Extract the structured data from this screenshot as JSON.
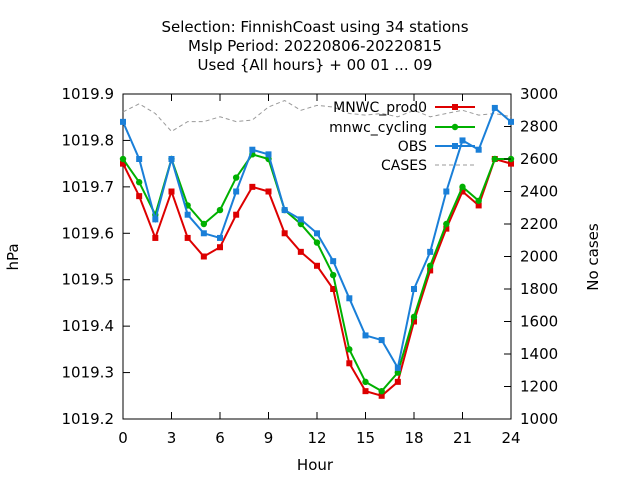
{
  "chart_data": {
    "type": "line",
    "title": [
      "Selection: FinnishCoast using    34 stations",
      "Mslp   Period: 20220806-20220815",
      "Used {All hours} + 00 01 ... 09"
    ],
    "xlabel": "Hour",
    "ylabel": "hPa",
    "y2label": "No cases",
    "xlim": [
      0,
      24
    ],
    "ylim": [
      1019.2,
      1019.9
    ],
    "y2lim": [
      1000,
      3000
    ],
    "xticks": [
      0,
      3,
      6,
      9,
      12,
      15,
      18,
      21,
      24
    ],
    "yticks": [
      1019.2,
      1019.3,
      1019.4,
      1019.5,
      1019.6,
      1019.7,
      1019.8,
      1019.9
    ],
    "y2ticks": [
      1000,
      1200,
      1400,
      1600,
      1800,
      2000,
      2200,
      2400,
      2600,
      2800,
      3000
    ],
    "grid": false,
    "legend_position": "top-right",
    "x": [
      0,
      1,
      2,
      3,
      4,
      5,
      6,
      7,
      8,
      9,
      10,
      11,
      12,
      13,
      14,
      15,
      16,
      17,
      18,
      19,
      20,
      21,
      22,
      23,
      24
    ],
    "series": [
      {
        "name": "MNWC_prod0",
        "axis": "y",
        "color": "#dd0000",
        "marker": "square",
        "values": [
          1019.75,
          1019.68,
          1019.59,
          1019.69,
          1019.59,
          1019.55,
          1019.57,
          1019.64,
          1019.7,
          1019.69,
          1019.6,
          1019.56,
          1019.53,
          1019.48,
          1019.32,
          1019.26,
          1019.25,
          1019.28,
          1019.41,
          1019.52,
          1019.61,
          1019.69,
          1019.66,
          1019.76,
          1019.75
        ]
      },
      {
        "name": "mnwc_cycling",
        "axis": "y",
        "color": "#00b000",
        "marker": "circle",
        "values": [
          1019.76,
          1019.71,
          1019.64,
          1019.76,
          1019.66,
          1019.62,
          1019.65,
          1019.72,
          1019.77,
          1019.76,
          1019.65,
          1019.62,
          1019.58,
          1019.51,
          1019.35,
          1019.28,
          1019.26,
          1019.3,
          1019.42,
          1019.53,
          1019.62,
          1019.7,
          1019.67,
          1019.76,
          1019.76
        ]
      },
      {
        "name": "OBS",
        "axis": "y",
        "color": "#1a7fd8",
        "marker": "square",
        "values": [
          1019.84,
          1019.76,
          1019.63,
          1019.76,
          1019.64,
          1019.6,
          1019.59,
          1019.69,
          1019.78,
          1019.77,
          1019.65,
          1019.63,
          1019.6,
          1019.54,
          1019.46,
          1019.38,
          1019.37,
          1019.31,
          1019.48,
          1019.56,
          1019.69,
          1019.8,
          1019.78,
          1019.87,
          1019.84
        ]
      },
      {
        "name": "CASES",
        "axis": "y2",
        "color": "#999999",
        "marker": "none",
        "dashed": true,
        "values": [
          2890,
          2940,
          2880,
          2770,
          2830,
          2830,
          2860,
          2830,
          2840,
          2920,
          2960,
          2900,
          2930,
          2920,
          2880,
          2870,
          2880,
          2860,
          2900,
          2860,
          2880,
          2900,
          2870,
          2880,
          2860
        ]
      }
    ]
  }
}
